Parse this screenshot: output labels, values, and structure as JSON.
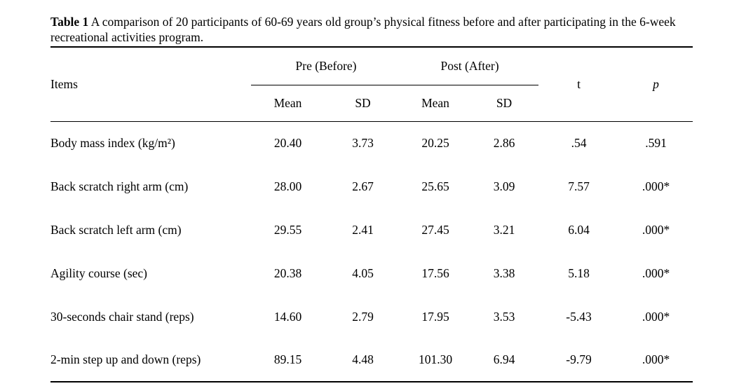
{
  "caption": {
    "label": "Table 1",
    "text": "A comparison of 20 participants of 60-69 years old group’s physical fitness before and after participating in the 6-week recreational activities program."
  },
  "table": {
    "items_header": "Items",
    "group_pre": "Pre (Before)",
    "group_post": "Post (After)",
    "t_header": "t",
    "p_header": "p",
    "sub_headers": [
      "Mean",
      "SD",
      "Mean",
      "SD"
    ],
    "rows": [
      {
        "item": "Body mass index (kg/m²)",
        "pre_mean": "20.40",
        "pre_sd": "3.73",
        "post_mean": "20.25",
        "post_sd": "2.86",
        "t": ".54",
        "p": ".591"
      },
      {
        "item": "Back scratch right arm (cm)",
        "pre_mean": "28.00",
        "pre_sd": "2.67",
        "post_mean": "25.65",
        "post_sd": "3.09",
        "t": "7.57",
        "p": ".000*"
      },
      {
        "item": "Back scratch left arm (cm)",
        "pre_mean": "29.55",
        "pre_sd": "2.41",
        "post_mean": "27.45",
        "post_sd": "3.21",
        "t": "6.04",
        "p": ".000*"
      },
      {
        "item": "Agility course (sec)",
        "pre_mean": "20.38",
        "pre_sd": "4.05",
        "post_mean": "17.56",
        "post_sd": "3.38",
        "t": "5.18",
        "p": ".000*"
      },
      {
        "item": "30-seconds chair stand (reps)",
        "pre_mean": "14.60",
        "pre_sd": "2.79",
        "post_mean": "17.95",
        "post_sd": "3.53",
        "t": "-5.43",
        "p": ".000*"
      },
      {
        "item": "2-min step up and down (reps)",
        "pre_mean": "89.15",
        "pre_sd": "4.48",
        "post_mean": "101.30",
        "post_sd": "6.94",
        "t": "-9.79",
        "p": ".000*"
      }
    ]
  }
}
